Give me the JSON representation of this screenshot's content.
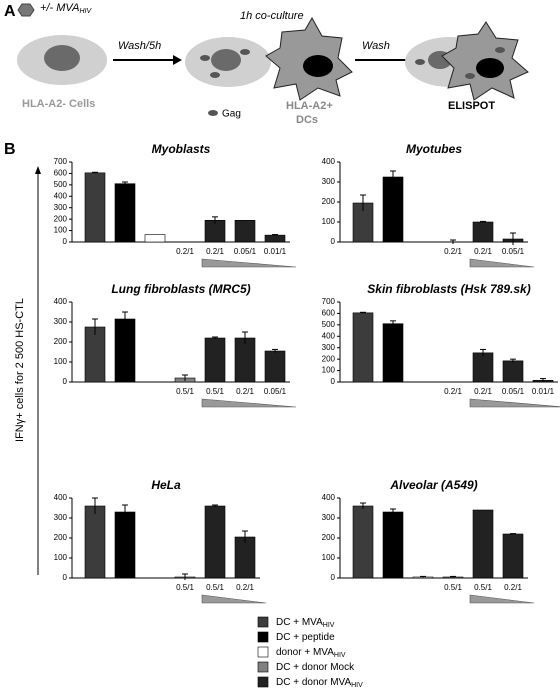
{
  "panel_a": {
    "label": "A",
    "treatment": {
      "text": "+/- MVA",
      "sub": "HIV"
    },
    "step1": "Wash/5h",
    "coculture": "1h co-culture",
    "step2": "Wash",
    "cells": "HLA-A2- Cells",
    "gag": "Gag",
    "dcs_line1": "HLA-A2+",
    "dcs_line2": "DCs",
    "readout": "ELISPOT"
  },
  "panel_b": {
    "label": "B",
    "y_axis_label": "IFNγ+ cells for 2 500 HS-CTL",
    "legend": [
      {
        "text": "DC + MVA",
        "sub": "HIV",
        "color": "#3c3c3c"
      },
      {
        "text": "DC + peptide",
        "sub": null,
        "color": "#000000"
      },
      {
        "text": "donor + MVA",
        "sub": "HIV",
        "color": "#ffffff"
      },
      {
        "text": "DC + donor Mock",
        "sub": null,
        "color": "#808080"
      },
      {
        "text": "DC + donor MVA",
        "sub": "HIV",
        "color": "#222222"
      }
    ]
  },
  "chart_data": [
    {
      "type": "bar",
      "title": "Myoblasts",
      "categories": [
        null,
        null,
        null,
        "0.2/1",
        "0.2/1",
        "0.05/1",
        "0.01/1"
      ],
      "values": [
        605,
        510,
        65,
        0,
        190,
        190,
        60
      ],
      "errors": [
        5,
        15,
        0,
        0,
        30,
        0,
        5
      ],
      "colors": [
        "#3c3c3c",
        "#000000",
        "#ffffff",
        "#808080",
        "#222222",
        "#222222",
        "#222222"
      ],
      "ylim": [
        0,
        700
      ],
      "yticks": [
        0,
        100,
        200,
        300,
        400,
        500,
        600,
        700
      ]
    },
    {
      "type": "bar",
      "title": "Myotubes",
      "categories": [
        null,
        null,
        null,
        "0.2/1",
        "0.2/1",
        "0.05/1"
      ],
      "values": [
        195,
        325,
        0,
        0,
        100,
        15
      ],
      "errors": [
        40,
        30,
        0,
        10,
        3,
        30
      ],
      "colors": [
        "#3c3c3c",
        "#000000",
        "#ffffff",
        "#808080",
        "#222222",
        "#222222"
      ],
      "ylim": [
        0,
        400
      ],
      "yticks": [
        0,
        100,
        200,
        300,
        400
      ]
    },
    {
      "type": "bar",
      "title": "Lung fibroblasts (MRC5)",
      "categories": [
        null,
        null,
        null,
        "0.5/1",
        "0.5/1",
        "0.2/1",
        "0.05/1"
      ],
      "values": [
        275,
        315,
        0,
        20,
        220,
        220,
        155
      ],
      "errors": [
        40,
        35,
        0,
        15,
        5,
        30,
        8
      ],
      "colors": [
        "#3c3c3c",
        "#000000",
        "#ffffff",
        "#808080",
        "#222222",
        "#222222",
        "#222222"
      ],
      "ylim": [
        0,
        400
      ],
      "yticks": [
        0,
        100,
        200,
        300,
        400
      ]
    },
    {
      "type": "bar",
      "title": "Skin fibroblasts (Hsk 789.sk)",
      "categories": [
        null,
        null,
        null,
        "0.2/1",
        "0.2/1",
        "0.05/1",
        "0.01/1"
      ],
      "values": [
        605,
        510,
        0,
        0,
        255,
        185,
        15
      ],
      "errors": [
        5,
        25,
        0,
        0,
        30,
        15,
        15
      ],
      "colors": [
        "#3c3c3c",
        "#000000",
        "#ffffff",
        "#808080",
        "#222222",
        "#222222",
        "#222222"
      ],
      "ylim": [
        0,
        700
      ],
      "yticks": [
        0,
        100,
        200,
        300,
        400,
        500,
        600,
        700
      ]
    },
    {
      "type": "bar",
      "title": "HeLa",
      "categories": [
        null,
        null,
        null,
        "0.5/1",
        "0.5/1",
        "0.2/1"
      ],
      "values": [
        360,
        330,
        0,
        5,
        360,
        205
      ],
      "errors": [
        40,
        35,
        0,
        15,
        5,
        30
      ],
      "colors": [
        "#3c3c3c",
        "#000000",
        "#ffffff",
        "#808080",
        "#222222",
        "#222222"
      ],
      "ylim": [
        0,
        400
      ],
      "yticks": [
        0,
        100,
        200,
        300,
        400
      ]
    },
    {
      "type": "bar",
      "title": "Alveolar (A549)",
      "categories": [
        null,
        null,
        null,
        "0.5/1",
        "0.5/1",
        "0.2/1"
      ],
      "values": [
        360,
        330,
        5,
        5,
        340,
        220
      ],
      "errors": [
        15,
        15,
        3,
        3,
        0,
        2
      ],
      "colors": [
        "#3c3c3c",
        "#000000",
        "#ffffff",
        "#808080",
        "#222222",
        "#222222"
      ],
      "ylim": [
        0,
        400
      ],
      "yticks": [
        0,
        100,
        200,
        300,
        400
      ]
    }
  ]
}
